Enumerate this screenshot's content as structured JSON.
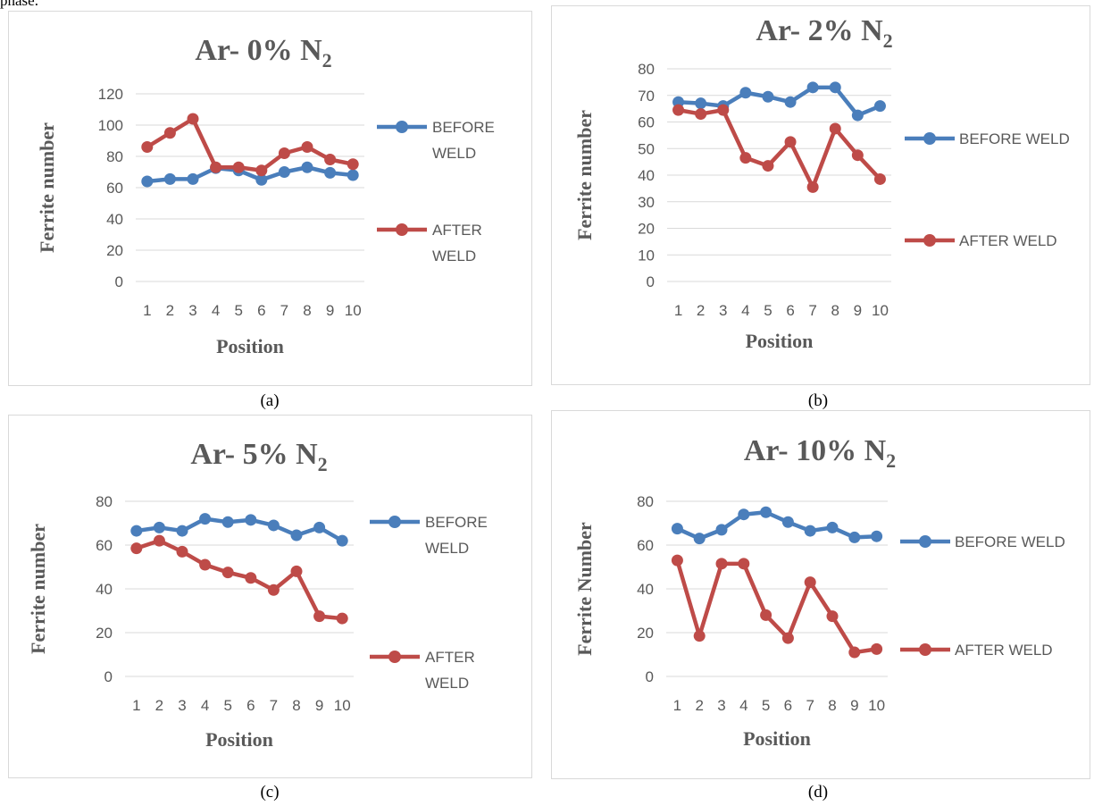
{
  "page": {
    "top_fragment": "phase."
  },
  "chart_data": [
    {
      "type": "line",
      "caption": "(a)",
      "title_main": "Ar- 0% N",
      "title_sub": "2",
      "xlabel": "Position",
      "ylabel": "Ferrite number",
      "x": [
        1,
        2,
        3,
        4,
        5,
        6,
        7,
        8,
        9,
        10
      ],
      "yticks": [
        0,
        20,
        40,
        60,
        80,
        100,
        120
      ],
      "ylim": [
        0,
        120
      ],
      "grid": true,
      "legend_position": "right",
      "series": [
        {
          "name": "BEFORE WELD",
          "legend_lines": [
            "BEFORE",
            "WELD"
          ],
          "color": "#4a7ebb",
          "values": [
            64,
            65.5,
            65.5,
            72.5,
            71,
            65,
            70,
            73,
            69.5,
            68
          ]
        },
        {
          "name": "AFTER WELD",
          "legend_lines": [
            "AFTER",
            "WELD"
          ],
          "color": "#be4b48",
          "values": [
            86,
            95,
            104,
            73,
            73,
            71,
            82,
            86,
            78,
            75
          ]
        }
      ]
    },
    {
      "type": "line",
      "caption": "(b)",
      "title_main": "Ar- 2% N",
      "title_sub": "2",
      "xlabel": "Position",
      "ylabel": "Ferrite number",
      "x": [
        1,
        2,
        3,
        4,
        5,
        6,
        7,
        8,
        9,
        10
      ],
      "yticks": [
        0,
        10,
        20,
        30,
        40,
        50,
        60,
        70,
        80
      ],
      "ylim": [
        0,
        80
      ],
      "grid": true,
      "legend_position": "right",
      "series": [
        {
          "name": "BEFORE WELD",
          "legend_lines": [
            "BEFORE WELD"
          ],
          "color": "#4a7ebb",
          "values": [
            67.5,
            67,
            66,
            71,
            69.5,
            67.5,
            73,
            73,
            62.5,
            66
          ]
        },
        {
          "name": "AFTER WELD",
          "legend_lines": [
            "AFTER WELD"
          ],
          "color": "#be4b48",
          "values": [
            64.5,
            63,
            64.5,
            46.5,
            43.5,
            52.5,
            35.5,
            57.5,
            47.5,
            38.5
          ]
        }
      ]
    },
    {
      "type": "line",
      "caption": "(c)",
      "title_main": "Ar- 5% N",
      "title_sub": "2",
      "xlabel": "Position",
      "ylabel": "Ferrite number",
      "x": [
        1,
        2,
        3,
        4,
        5,
        6,
        7,
        8,
        9,
        10
      ],
      "yticks": [
        0,
        20,
        40,
        60,
        80
      ],
      "ylim": [
        0,
        80
      ],
      "grid": true,
      "legend_position": "right",
      "series": [
        {
          "name": "BEFORE WELD",
          "legend_lines": [
            "BEFORE",
            "WELD"
          ],
          "color": "#4a7ebb",
          "values": [
            66.5,
            68,
            66.5,
            72,
            70.5,
            71.5,
            69,
            64.5,
            68,
            62
          ]
        },
        {
          "name": "AFTER WELD",
          "legend_lines": [
            "AFTER",
            "WELD"
          ],
          "color": "#be4b48",
          "values": [
            58.5,
            62,
            57,
            51,
            47.5,
            45,
            39.5,
            48,
            27.5,
            26.5
          ]
        }
      ]
    },
    {
      "type": "line",
      "caption": "(d)",
      "title_main": "Ar- 10% N",
      "title_sub": "2",
      "xlabel": "Position",
      "ylabel": "Ferrite Number",
      "x": [
        1,
        2,
        3,
        4,
        5,
        6,
        7,
        8,
        9,
        10
      ],
      "yticks": [
        0,
        20,
        40,
        60,
        80
      ],
      "ylim": [
        0,
        80
      ],
      "grid": true,
      "legend_position": "right",
      "series": [
        {
          "name": "BEFORE WELD",
          "legend_lines": [
            "BEFORE WELD"
          ],
          "color": "#4a7ebb",
          "values": [
            67.5,
            63,
            67,
            74,
            75,
            70.5,
            66.5,
            68,
            63.5,
            64
          ]
        },
        {
          "name": "AFTER WELD",
          "legend_lines": [
            "AFTER WELD"
          ],
          "color": "#be4b48",
          "values": [
            53,
            18.5,
            51.5,
            51.5,
            28,
            17.5,
            43,
            27.5,
            11,
            12.5
          ]
        }
      ]
    }
  ]
}
